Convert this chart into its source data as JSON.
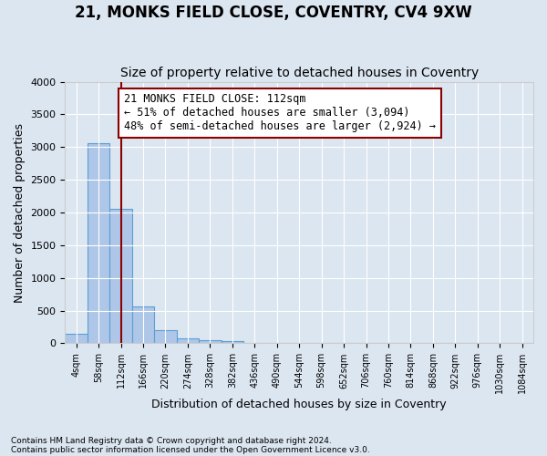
{
  "title": "21, MONKS FIELD CLOSE, COVENTRY, CV4 9XW",
  "subtitle": "Size of property relative to detached houses in Coventry",
  "xlabel": "Distribution of detached houses by size in Coventry",
  "ylabel": "Number of detached properties",
  "footnote1": "Contains HM Land Registry data © Crown copyright and database right 2024.",
  "footnote2": "Contains public sector information licensed under the Open Government Licence v3.0.",
  "bin_labels": [
    "4sqm",
    "58sqm",
    "112sqm",
    "166sqm",
    "220sqm",
    "274sqm",
    "328sqm",
    "382sqm",
    "436sqm",
    "490sqm",
    "544sqm",
    "598sqm",
    "652sqm",
    "706sqm",
    "760sqm",
    "814sqm",
    "868sqm",
    "922sqm",
    "976sqm",
    "1030sqm",
    "1084sqm"
  ],
  "bar_values": [
    140,
    3060,
    2060,
    560,
    200,
    75,
    55,
    35,
    0,
    0,
    0,
    0,
    0,
    0,
    0,
    0,
    0,
    0,
    0,
    0,
    0
  ],
  "bar_color": "#aec6e8",
  "bar_edge_color": "#5a9fd4",
  "vline_x": 2,
  "vline_color": "#8B0000",
  "annotation_text": "21 MONKS FIELD CLOSE: 112sqm\n← 51% of detached houses are smaller (3,094)\n48% of semi-detached houses are larger (2,924) →",
  "annotation_box_color": "#ffffff",
  "annotation_box_edge_color": "#8B0000",
  "annotation_fontsize": 8.5,
  "ylim": [
    0,
    4000
  ],
  "yticks": [
    0,
    500,
    1000,
    1500,
    2000,
    2500,
    3000,
    3500,
    4000
  ],
  "background_color": "#dce6f1",
  "plot_bg_color": "#dce6f1",
  "grid_color": "#ffffff",
  "title_fontsize": 12,
  "subtitle_fontsize": 10,
  "xlabel_fontsize": 9,
  "ylabel_fontsize": 9
}
